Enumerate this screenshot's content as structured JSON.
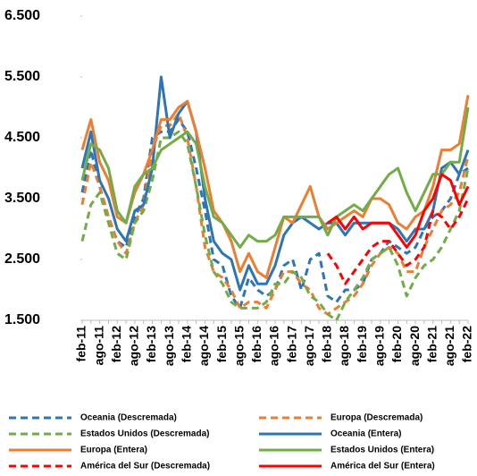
{
  "chart_data": {
    "type": "line",
    "categories": [
      "feb-11",
      null,
      "ago-11",
      null,
      "feb-12",
      null,
      "ago-12",
      null,
      "feb-13",
      null,
      "ago-13",
      null,
      "feb-14",
      null,
      "ago-14",
      null,
      "feb-15",
      null,
      "ago-15",
      null,
      "feb-16",
      null,
      "ago-16",
      null,
      "feb-17",
      null,
      "ago-17",
      null,
      "feb-18",
      null,
      "ago-18",
      null,
      "feb-19",
      null,
      "ago-19",
      null,
      "feb-20",
      null,
      "ago-20",
      null,
      "feb-21",
      null,
      "ago-21",
      null,
      "feb-22"
    ],
    "ylim": [
      1500,
      6500
    ],
    "yticks": [
      {
        "value": 1500,
        "label": "1.500"
      },
      {
        "value": 2500,
        "label": "2.500"
      },
      {
        "value": 3500,
        "label": "3.500"
      },
      {
        "value": 4500,
        "label": "4.500"
      },
      {
        "value": 5500,
        "label": "5.500"
      },
      {
        "value": 6500,
        "label": "6.500"
      }
    ],
    "series": [
      {
        "name": "Oceania (Descremada)",
        "color": "#2e75b6",
        "dashed": true,
        "values": [
          3600,
          4300,
          3700,
          3200,
          2800,
          2700,
          3200,
          3500,
          4500,
          4600,
          4600,
          4800,
          4600,
          4000,
          3300,
          2500,
          2400,
          1900,
          1700,
          2200,
          2000,
          1900,
          2000,
          2400,
          2500,
          2000,
          2500,
          2600,
          1900,
          1800,
          2000,
          2000,
          2100,
          2500,
          2600,
          2800,
          2700,
          2600,
          2700,
          3000,
          3200,
          3300,
          3500,
          3900,
          4000
        ]
      },
      {
        "name": "Europa (Descremada)",
        "color": "#ed7d31",
        "dashed": true,
        "values": [
          3400,
          4100,
          3700,
          3200,
          2800,
          2600,
          3100,
          3400,
          4300,
          4700,
          4700,
          4900,
          4500,
          3700,
          2700,
          2300,
          2200,
          2000,
          1700,
          1800,
          1800,
          1700,
          2000,
          2300,
          2300,
          2100,
          2000,
          1700,
          1600,
          1700,
          1800,
          1900,
          2100,
          2400,
          2600,
          2700,
          2600,
          2300,
          2300,
          2700,
          3000,
          3300,
          3400,
          3600,
          4200
        ]
      },
      {
        "name": "Estados Unidos (Descremada)",
        "color": "#70ad47",
        "dashed": true,
        "values": [
          2800,
          3400,
          3600,
          3100,
          2600,
          2500,
          3100,
          3300,
          3800,
          4500,
          4500,
          4600,
          4400,
          3700,
          2900,
          2300,
          2100,
          1800,
          1700,
          1700,
          1700,
          1800,
          2100,
          2100,
          2300,
          2200,
          1900,
          1800,
          1600,
          1500,
          1800,
          2000,
          2200,
          2500,
          2600,
          2700,
          2400,
          1900,
          2200,
          2400,
          2500,
          2700,
          3000,
          3300,
          4000
        ]
      },
      {
        "name": "Oceania (Entera)",
        "color": "#2e75b6",
        "dashed": false,
        "values": [
          4000,
          4600,
          3800,
          3500,
          3000,
          2800,
          3300,
          3400,
          4000,
          5500,
          4500,
          4900,
          5100,
          4600,
          3500,
          2800,
          2600,
          2500,
          2000,
          2400,
          2100,
          2100,
          2400,
          2900,
          3100,
          3200,
          3100,
          3000,
          3100,
          3100,
          2900,
          3100,
          3100,
          3100,
          3100,
          3100,
          3000,
          2800,
          3000,
          3000,
          3300,
          4000,
          4100,
          3900,
          4300
        ]
      },
      {
        "name": "Europa (Entera)",
        "color": "#ed7d31",
        "dashed": false,
        "values": [
          4300,
          4800,
          4100,
          3800,
          3200,
          3100,
          3600,
          3900,
          4300,
          4800,
          4800,
          5000,
          5100,
          4600,
          4000,
          3300,
          3100,
          2800,
          2300,
          2600,
          2300,
          2200,
          2700,
          3200,
          3100,
          3400,
          3700,
          3200,
          3000,
          3100,
          3200,
          3300,
          3200,
          3500,
          3500,
          3400,
          3100,
          3000,
          3200,
          3300,
          3700,
          4300,
          4300,
          4400,
          5200
        ]
      },
      {
        "name": "Estados Unidos (Entera)",
        "color": "#70ad47",
        "dashed": false,
        "values": [
          3800,
          4400,
          4300,
          4000,
          3300,
          3100,
          3700,
          3900,
          4000,
          4300,
          4400,
          4500,
          4600,
          4400,
          3700,
          3200,
          3100,
          2900,
          2700,
          2900,
          2800,
          2800,
          2900,
          3200,
          3200,
          3200,
          3200,
          3200,
          2900,
          3200,
          3300,
          3400,
          3300,
          3500,
          3700,
          3900,
          4000,
          3600,
          3300,
          3600,
          3900,
          3900,
          4100,
          4100,
          5000
        ]
      },
      {
        "name": "América del Sur (Descremada)",
        "color": "#ff0000",
        "dashed": true,
        "values": [
          null,
          null,
          null,
          null,
          null,
          null,
          null,
          null,
          null,
          null,
          null,
          null,
          null,
          null,
          null,
          null,
          null,
          null,
          null,
          null,
          null,
          null,
          null,
          null,
          null,
          null,
          null,
          null,
          2600,
          2400,
          2100,
          2300,
          2500,
          2700,
          2800,
          2800,
          2600,
          2400,
          2500,
          2700,
          3300,
          3200,
          3000,
          3200,
          3500
        ]
      },
      {
        "name": "América del Sur (Entera)",
        "color": "#ff0000",
        "dashed": false,
        "values": [
          null,
          null,
          null,
          null,
          null,
          null,
          null,
          null,
          null,
          null,
          null,
          null,
          null,
          null,
          null,
          null,
          null,
          null,
          null,
          null,
          null,
          null,
          null,
          null,
          null,
          null,
          null,
          null,
          3100,
          3200,
          3000,
          3200,
          3000,
          3100,
          3100,
          3100,
          2900,
          2700,
          2900,
          3300,
          3500,
          3900,
          3800,
          3400,
          3700
        ]
      }
    ]
  }
}
